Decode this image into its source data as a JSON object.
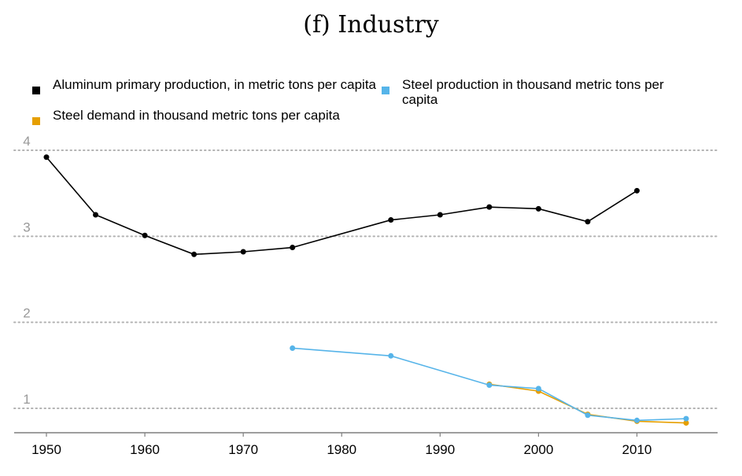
{
  "title": "(f) Industry",
  "legend": [
    {
      "label": "Aluminum primary production, in metric tons per capita",
      "color": "#000000"
    },
    {
      "label": "Steel demand in thousand metric tons per capita",
      "color": "#E69F00"
    },
    {
      "label": "Steel production in thousand metric tons per capita",
      "color": "#56B4E9"
    }
  ],
  "chart_data": {
    "type": "line",
    "title": "(f) Industry",
    "xlabel": "",
    "ylabel": "",
    "xlim": [
      1950,
      2015
    ],
    "ylim": [
      0.7,
      4.0
    ],
    "xticks": [
      1950,
      1960,
      1970,
      1980,
      1990,
      2000,
      2010
    ],
    "yticks": [
      1,
      2,
      3,
      4
    ],
    "grid": "horizontal dotted",
    "legend_position": "top",
    "series": [
      {
        "name": "Aluminum primary production, in metric tons per capita",
        "color": "#000000",
        "x": [
          1950,
          1955,
          1960,
          1965,
          1970,
          1975,
          1985,
          1990,
          1995,
          2000,
          2005,
          2010
        ],
        "y": [
          3.92,
          3.25,
          3.01,
          2.79,
          2.82,
          2.87,
          3.19,
          3.25,
          3.34,
          3.32,
          3.17,
          3.53
        ]
      },
      {
        "name": "Steel demand in thousand metric tons per capita",
        "color": "#E69F00",
        "x": [
          1995,
          2000,
          2005,
          2010,
          2015
        ],
        "y": [
          1.28,
          1.2,
          0.93,
          0.85,
          0.83
        ]
      },
      {
        "name": "Steel production in thousand metric tons per capita",
        "color": "#56B4E9",
        "x": [
          1975,
          1985,
          1995,
          2000,
          2005,
          2010,
          2015
        ],
        "y": [
          1.7,
          1.61,
          1.27,
          1.23,
          0.92,
          0.86,
          0.88
        ]
      }
    ]
  }
}
